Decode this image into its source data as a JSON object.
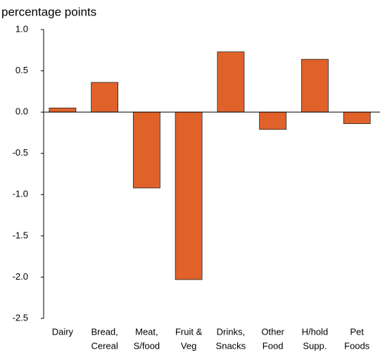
{
  "chart_data": {
    "type": "bar",
    "title": "percentage points",
    "categories": [
      [
        "Dairy"
      ],
      [
        "Bread,",
        "Cereal"
      ],
      [
        "Meat,",
        "S/food"
      ],
      [
        "Fruit &",
        "Veg"
      ],
      [
        "Drinks,",
        "Snacks"
      ],
      [
        "Other",
        "Food"
      ],
      [
        "H/hold",
        "Supp."
      ],
      [
        "Pet",
        "Foods"
      ]
    ],
    "values": [
      0.05,
      0.36,
      -0.92,
      -2.03,
      0.73,
      -0.21,
      0.64,
      -0.14
    ],
    "color": "#e0622a",
    "ylim": [
      -2.5,
      1.0
    ],
    "yticks": [
      {
        "value": 1.0,
        "label": "1.0"
      },
      0.5,
      {
        "value": 0.0,
        "label": "0.0"
      },
      -0.5,
      {
        "value": -1.0,
        "label": "-1.0"
      },
      -1.5,
      {
        "value": -2.0,
        "label": "-2.0"
      },
      -2.5
    ]
  }
}
